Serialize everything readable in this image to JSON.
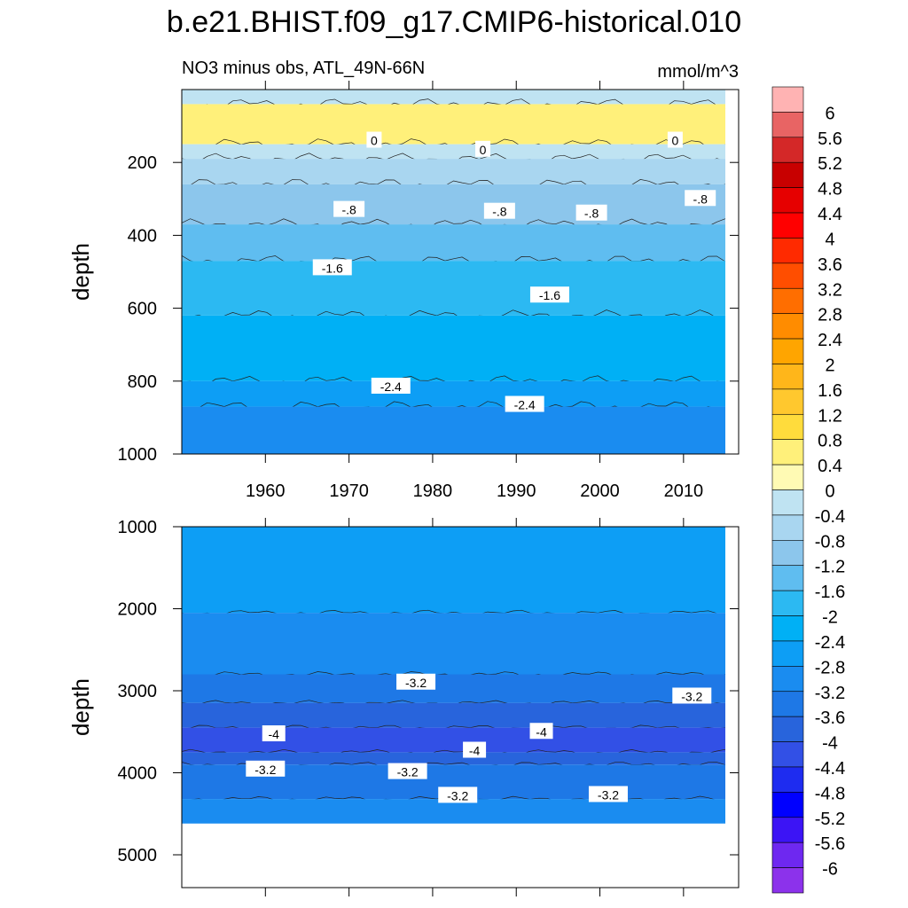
{
  "figure": {
    "title": "b.e21.BHIST.f09_g17.CMIP6-historical.010",
    "subtitle_left": "NO3 minus obs, ATL_49N-66N",
    "units": "mmol/m^3"
  },
  "chart_data": [
    {
      "type": "heatmap",
      "panel": "upper",
      "title": "NO3 minus obs, ATL_49N-66N",
      "ylabel": "depth",
      "xlabel": "",
      "xlim": [
        1950,
        2015
      ],
      "ylim": [
        1000,
        0
      ],
      "x_ticks": [
        1960,
        1970,
        1980,
        1990,
        2000,
        2010
      ],
      "y_ticks": [
        200,
        400,
        600,
        800,
        1000
      ],
      "band_boundaries": [
        {
          "depth": 40,
          "value_above": -0.4
        },
        {
          "depth": 150,
          "value_above": 0.4
        },
        {
          "depth": 190,
          "value_above": -0.4
        },
        {
          "depth": 260,
          "value_above": -0.8
        },
        {
          "depth": 370,
          "value_above": -1.2
        },
        {
          "depth": 470,
          "value_above": -1.6
        },
        {
          "depth": 620,
          "value_above": -2.0
        },
        {
          "depth": 800,
          "value_above": -2.4
        },
        {
          "depth": 870,
          "value_above": -2.8
        }
      ],
      "deepest_value": -3.2,
      "contour_labels": [
        {
          "text": "0",
          "year": 1973,
          "depth": 140
        },
        {
          "text": "0",
          "year": 1986,
          "depth": 165
        },
        {
          "text": "0",
          "year": 2009,
          "depth": 140
        },
        {
          "text": "-.8",
          "year": 1970,
          "depth": 330
        },
        {
          "text": "-.8",
          "year": 1988,
          "depth": 335
        },
        {
          "text": "-.8",
          "year": 1999,
          "depth": 340
        },
        {
          "text": "-.8",
          "year": 2012,
          "depth": 300
        },
        {
          "text": "-1.6",
          "year": 1968,
          "depth": 490
        },
        {
          "text": "-1.6",
          "year": 1994,
          "depth": 565
        },
        {
          "text": "-2.4",
          "year": 1975,
          "depth": 815
        },
        {
          "text": "-2.4",
          "year": 1991,
          "depth": 865
        }
      ]
    },
    {
      "type": "heatmap",
      "panel": "lower",
      "ylabel": "depth",
      "xlabel": "",
      "xlim": [
        1950,
        2015
      ],
      "ylim": [
        5400,
        1000
      ],
      "y_ticks": [
        1000,
        2000,
        3000,
        4000,
        5000
      ],
      "data_floor_depth": 4620,
      "band_boundaries": [
        {
          "depth": 2050,
          "value_above": -2.8
        },
        {
          "depth": 2800,
          "value_above": -3.2
        },
        {
          "depth": 3150,
          "value_above": -3.6
        },
        {
          "depth": 3450,
          "value_above": -4.0
        },
        {
          "depth": 3750,
          "value_above": -4.4
        },
        {
          "depth": 3900,
          "value_above": -4.0
        },
        {
          "depth": 4320,
          "value_above": -3.6
        }
      ],
      "deepest_value": -3.2,
      "contour_labels": [
        {
          "text": "-3.2",
          "year": 1978,
          "depth": 2900
        },
        {
          "text": "-3.2",
          "year": 2011,
          "depth": 3070
        },
        {
          "text": "-4",
          "year": 1961,
          "depth": 3530
        },
        {
          "text": "-4",
          "year": 1993,
          "depth": 3500
        },
        {
          "text": "-4",
          "year": 1985,
          "depth": 3730
        },
        {
          "text": "-3.2",
          "year": 1960,
          "depth": 3960
        },
        {
          "text": "-3.2",
          "year": 1977,
          "depth": 3990
        },
        {
          "text": "-3.2",
          "year": 1983,
          "depth": 4280
        },
        {
          "text": "-3.2",
          "year": 2001,
          "depth": 4270
        }
      ]
    }
  ],
  "colorbar": {
    "bins": [
      {
        "label": "6",
        "color": "#ffb3b3"
      },
      {
        "label": "5.6",
        "color": "#e86464"
      },
      {
        "label": "5.2",
        "color": "#d42828"
      },
      {
        "label": "4.8",
        "color": "#c80000"
      },
      {
        "label": "4.4",
        "color": "#e60000"
      },
      {
        "label": "4",
        "color": "#ff0000"
      },
      {
        "label": "3.6",
        "color": "#ff2a00"
      },
      {
        "label": "3.2",
        "color": "#ff4e00"
      },
      {
        "label": "2.8",
        "color": "#ff6e00"
      },
      {
        "label": "2.4",
        "color": "#ff8c00"
      },
      {
        "label": "2",
        "color": "#ffa500"
      },
      {
        "label": "1.6",
        "color": "#ffb61a"
      },
      {
        "label": "1.2",
        "color": "#ffc82e"
      },
      {
        "label": "0.8",
        "color": "#ffdc3c"
      },
      {
        "label": "0.4",
        "color": "#fff07a"
      },
      {
        "label": "0",
        "color": "#fffab4"
      },
      {
        "label": "-0.4",
        "color": "#bfe3f2"
      },
      {
        "label": "-0.8",
        "color": "#a9d6f0"
      },
      {
        "label": "-1.2",
        "color": "#8cc6ec"
      },
      {
        "label": "-1.6",
        "color": "#5fbdf0"
      },
      {
        "label": "-2",
        "color": "#2cb9f2"
      },
      {
        "label": "-2.4",
        "color": "#00b0f5"
      },
      {
        "label": "-2.8",
        "color": "#0d9ef5"
      },
      {
        "label": "-3.2",
        "color": "#1a8cf0"
      },
      {
        "label": "-3.6",
        "color": "#1e78e6"
      },
      {
        "label": "-4",
        "color": "#2864dc"
      },
      {
        "label": "-4.4",
        "color": "#3250e6"
      },
      {
        "label": "-4.8",
        "color": "#1e2cf0"
      },
      {
        "label": "-5.2",
        "color": "#0000ff"
      },
      {
        "label": "-5.6",
        "color": "#3c14f5"
      },
      {
        "label": "-6",
        "color": "#6e28f0"
      },
      {
        "label": "",
        "color": "#8c32eb"
      }
    ]
  }
}
